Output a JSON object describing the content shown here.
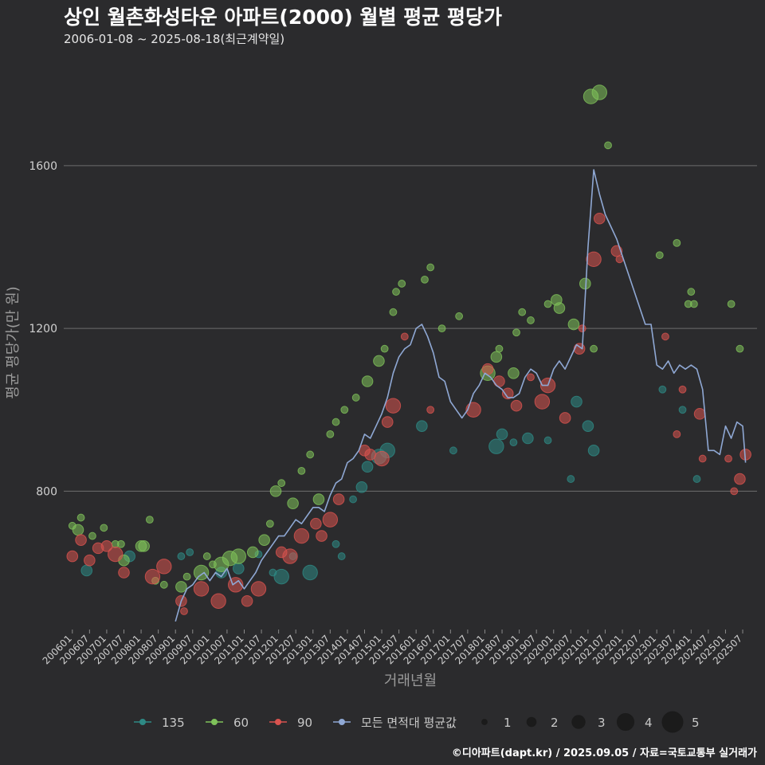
{
  "title": "상인 월촌화성타운 아파트(2000) 월별 평균 평당가",
  "subtitle": "2006-01-08 ~ 2025-08-18(최근계약일)",
  "caption": "©디아파트(dapt.kr) / 2025.09.05 / 자료=국토교통부 실거래가",
  "colors": {
    "135": "#2e8a85",
    "60": "#7fc25a",
    "90": "#d9534f",
    "avg": "#8fa8d4"
  },
  "chart_data": {
    "type": "scatter",
    "xlabel": "거래년월",
    "ylabel": "평균 평당가(만 원)",
    "x_ticks": [
      "200601",
      "200607",
      "200701",
      "200707",
      "200801",
      "200807",
      "200901",
      "200907",
      "201001",
      "201007",
      "201101",
      "201107",
      "201201",
      "201207",
      "201301",
      "201307",
      "201401",
      "201407",
      "201501",
      "201507",
      "201601",
      "201607",
      "201701",
      "201707",
      "201801",
      "201807",
      "201901",
      "201907",
      "202001",
      "202007",
      "202101",
      "202107",
      "202201",
      "202207",
      "202301",
      "202307",
      "202401",
      "202407",
      "202501",
      "202507"
    ],
    "y_ticks": [
      800,
      1200,
      1600
    ],
    "xlim": [
      "2005-10",
      "2025-12"
    ],
    "ylim": [
      460,
      1870
    ],
    "legend": {
      "placement": "bottom",
      "series": [
        {
          "key": "135",
          "label": "135"
        },
        {
          "key": "60",
          "label": "60"
        },
        {
          "key": "90",
          "label": "90"
        },
        {
          "key": "avg",
          "label": "모든 면적대 평균값"
        }
      ],
      "sizes": [
        1,
        2,
        3,
        4,
        5
      ]
    },
    "series": [
      {
        "name": "135",
        "points": [
          [
            "2006-06",
            605,
            2
          ],
          [
            "2007-09",
            640,
            2
          ],
          [
            "2009-03",
            640,
            1
          ],
          [
            "2009-06",
            650,
            1
          ],
          [
            "2010-05",
            600,
            2
          ],
          [
            "2010-11",
            610,
            2
          ],
          [
            "2011-06",
            645,
            1
          ],
          [
            "2011-11",
            600,
            1
          ],
          [
            "2012-02",
            590,
            3
          ],
          [
            "2012-06",
            640,
            1
          ],
          [
            "2012-12",
            600,
            3
          ],
          [
            "2013-09",
            670,
            1
          ],
          [
            "2013-11",
            640,
            1
          ],
          [
            "2014-03",
            780,
            1
          ],
          [
            "2014-06",
            810,
            2
          ],
          [
            "2014-08",
            860,
            2
          ],
          [
            "2014-12",
            885,
            3
          ],
          [
            "2015-03",
            900,
            3
          ],
          [
            "2016-03",
            960,
            2
          ],
          [
            "2017-02",
            900,
            1
          ],
          [
            "2018-05",
            910,
            3
          ],
          [
            "2018-07",
            940,
            2
          ],
          [
            "2018-11",
            920,
            1
          ],
          [
            "2019-04",
            930,
            2
          ],
          [
            "2019-11",
            925,
            1
          ],
          [
            "2020-07",
            830,
            1
          ],
          [
            "2020-09",
            1020,
            2
          ],
          [
            "2021-01",
            960,
            2
          ],
          [
            "2021-03",
            900,
            2
          ],
          [
            "2023-03",
            1050,
            1
          ],
          [
            "2023-10",
            1000,
            1
          ],
          [
            "2024-03",
            830,
            1
          ]
        ]
      },
      {
        "name": "60",
        "points": [
          [
            "2006-01",
            715,
            1
          ],
          [
            "2006-03",
            705,
            2
          ],
          [
            "2006-04",
            735,
            1
          ],
          [
            "2006-08",
            690,
            1
          ],
          [
            "2006-12",
            710,
            1
          ],
          [
            "2007-04",
            670,
            1
          ],
          [
            "2007-06",
            670,
            1
          ],
          [
            "2007-07",
            630,
            2
          ],
          [
            "2008-01",
            665,
            2
          ],
          [
            "2008-02",
            665,
            2
          ],
          [
            "2008-04",
            730,
            1
          ],
          [
            "2008-06",
            580,
            1
          ],
          [
            "2008-09",
            570,
            1
          ],
          [
            "2009-03",
            565,
            2
          ],
          [
            "2009-05",
            590,
            1
          ],
          [
            "2009-10",
            600,
            3
          ],
          [
            "2009-12",
            640,
            1
          ],
          [
            "2010-02",
            620,
            1
          ],
          [
            "2010-05",
            620,
            3
          ],
          [
            "2010-08",
            635,
            3
          ],
          [
            "2010-11",
            640,
            3
          ],
          [
            "2011-04",
            650,
            2
          ],
          [
            "2011-08",
            680,
            2
          ],
          [
            "2011-10",
            720,
            1
          ],
          [
            "2011-12",
            800,
            2
          ],
          [
            "2012-02",
            820,
            1
          ],
          [
            "2012-06",
            770,
            2
          ],
          [
            "2012-09",
            850,
            1
          ],
          [
            "2012-12",
            890,
            1
          ],
          [
            "2013-03",
            780,
            2
          ],
          [
            "2013-07",
            940,
            1
          ],
          [
            "2013-09",
            970,
            1
          ],
          [
            "2013-12",
            1000,
            1
          ],
          [
            "2014-04",
            1030,
            1
          ],
          [
            "2014-08",
            1070,
            2
          ],
          [
            "2014-12",
            1120,
            2
          ],
          [
            "2015-02",
            1150,
            1
          ],
          [
            "2015-05",
            1240,
            1
          ],
          [
            "2015-06",
            1290,
            1
          ],
          [
            "2015-08",
            1310,
            1
          ],
          [
            "2016-04",
            1320,
            1
          ],
          [
            "2016-06",
            1350,
            1
          ],
          [
            "2016-10",
            1200,
            1
          ],
          [
            "2017-04",
            1230,
            1
          ],
          [
            "2018-02",
            1090,
            3
          ],
          [
            "2018-05",
            1130,
            2
          ],
          [
            "2018-06",
            1150,
            1
          ],
          [
            "2018-11",
            1090,
            2
          ],
          [
            "2018-12",
            1190,
            1
          ],
          [
            "2019-02",
            1240,
            1
          ],
          [
            "2019-05",
            1220,
            1
          ],
          [
            "2019-11",
            1260,
            1
          ],
          [
            "2020-02",
            1270,
            2
          ],
          [
            "2020-03",
            1250,
            2
          ],
          [
            "2020-08",
            1210,
            2
          ],
          [
            "2020-12",
            1310,
            2
          ],
          [
            "2021-03",
            1150,
            1
          ],
          [
            "2021-02",
            1770,
            3
          ],
          [
            "2021-05",
            1780,
            3
          ],
          [
            "2021-08",
            1650,
            1
          ],
          [
            "2023-02",
            1380,
            1
          ],
          [
            "2023-08",
            1410,
            1
          ],
          [
            "2023-12",
            1260,
            1
          ],
          [
            "2024-01",
            1290,
            1
          ],
          [
            "2024-02",
            1260,
            1
          ],
          [
            "2025-03",
            1260,
            1
          ],
          [
            "2025-06",
            1150,
            1
          ]
        ]
      },
      {
        "name": "90",
        "points": [
          [
            "2006-01",
            640,
            2
          ],
          [
            "2006-04",
            680,
            2
          ],
          [
            "2006-07",
            630,
            2
          ],
          [
            "2006-10",
            660,
            2
          ],
          [
            "2007-01",
            665,
            2
          ],
          [
            "2007-04",
            645,
            3
          ],
          [
            "2007-07",
            600,
            2
          ],
          [
            "2008-05",
            590,
            3
          ],
          [
            "2008-09",
            615,
            3
          ],
          [
            "2009-03",
            530,
            2
          ],
          [
            "2009-04",
            505,
            1
          ],
          [
            "2009-10",
            560,
            3
          ],
          [
            "2010-04",
            530,
            3
          ],
          [
            "2010-10",
            570,
            3
          ],
          [
            "2011-02",
            530,
            2
          ],
          [
            "2011-06",
            560,
            3
          ],
          [
            "2012-02",
            650,
            2
          ],
          [
            "2012-05",
            640,
            3
          ],
          [
            "2012-09",
            690,
            3
          ],
          [
            "2013-02",
            720,
            2
          ],
          [
            "2013-04",
            690,
            2
          ],
          [
            "2013-07",
            730,
            3
          ],
          [
            "2013-10",
            780,
            2
          ],
          [
            "2014-07",
            900,
            2
          ],
          [
            "2014-09",
            890,
            2
          ],
          [
            "2015-01",
            880,
            3
          ],
          [
            "2015-03",
            970,
            2
          ],
          [
            "2015-05",
            1010,
            3
          ],
          [
            "2015-09",
            1180,
            1
          ],
          [
            "2016-06",
            1000,
            1
          ],
          [
            "2017-09",
            1000,
            3
          ],
          [
            "2018-02",
            1100,
            2
          ],
          [
            "2018-06",
            1070,
            2
          ],
          [
            "2018-09",
            1040,
            2
          ],
          [
            "2018-12",
            1010,
            2
          ],
          [
            "2019-05",
            1080,
            1
          ],
          [
            "2019-09",
            1020,
            3
          ],
          [
            "2019-11",
            1060,
            3
          ],
          [
            "2020-05",
            980,
            2
          ],
          [
            "2020-10",
            1150,
            2
          ],
          [
            "2020-11",
            1200,
            1
          ],
          [
            "2021-03",
            1370,
            3
          ],
          [
            "2021-05",
            1470,
            2
          ],
          [
            "2021-11",
            1390,
            2
          ],
          [
            "2021-12",
            1370,
            1
          ],
          [
            "2023-04",
            1180,
            1
          ],
          [
            "2023-08",
            940,
            1
          ],
          [
            "2023-10",
            1050,
            1
          ],
          [
            "2024-04",
            990,
            2
          ],
          [
            "2024-05",
            880,
            1
          ],
          [
            "2025-02",
            880,
            1
          ],
          [
            "2025-04",
            800,
            1
          ],
          [
            "2025-06",
            830,
            2
          ],
          [
            "2025-08",
            890,
            2
          ]
        ]
      }
    ],
    "avg_line": [
      [
        "2009-01",
        480
      ],
      [
        "2009-03",
        530
      ],
      [
        "2009-05",
        560
      ],
      [
        "2009-07",
        570
      ],
      [
        "2009-09",
        590
      ],
      [
        "2009-11",
        600
      ],
      [
        "2010-01",
        580
      ],
      [
        "2010-03",
        600
      ],
      [
        "2010-05",
        590
      ],
      [
        "2010-07",
        610
      ],
      [
        "2010-09",
        570
      ],
      [
        "2010-11",
        580
      ],
      [
        "2011-01",
        560
      ],
      [
        "2011-03",
        580
      ],
      [
        "2011-05",
        600
      ],
      [
        "2011-07",
        630
      ],
      [
        "2011-09",
        650
      ],
      [
        "2011-11",
        670
      ],
      [
        "2012-01",
        690
      ],
      [
        "2012-03",
        690
      ],
      [
        "2012-05",
        710
      ],
      [
        "2012-07",
        730
      ],
      [
        "2012-09",
        720
      ],
      [
        "2012-11",
        740
      ],
      [
        "2013-01",
        760
      ],
      [
        "2013-03",
        760
      ],
      [
        "2013-05",
        750
      ],
      [
        "2013-07",
        790
      ],
      [
        "2013-09",
        820
      ],
      [
        "2013-11",
        830
      ],
      [
        "2014-01",
        870
      ],
      [
        "2014-03",
        880
      ],
      [
        "2014-05",
        900
      ],
      [
        "2014-07",
        940
      ],
      [
        "2014-09",
        930
      ],
      [
        "2014-11",
        960
      ],
      [
        "2015-01",
        990
      ],
      [
        "2015-03",
        1030
      ],
      [
        "2015-05",
        1090
      ],
      [
        "2015-07",
        1130
      ],
      [
        "2015-09",
        1150
      ],
      [
        "2015-11",
        1160
      ],
      [
        "2016-01",
        1200
      ],
      [
        "2016-03",
        1210
      ],
      [
        "2016-05",
        1180
      ],
      [
        "2016-07",
        1140
      ],
      [
        "2016-09",
        1080
      ],
      [
        "2016-11",
        1070
      ],
      [
        "2017-01",
        1020
      ],
      [
        "2017-03",
        1000
      ],
      [
        "2017-05",
        980
      ],
      [
        "2017-07",
        1000
      ],
      [
        "2017-09",
        1040
      ],
      [
        "2017-11",
        1060
      ],
      [
        "2018-01",
        1090
      ],
      [
        "2018-03",
        1080
      ],
      [
        "2018-05",
        1060
      ],
      [
        "2018-07",
        1050
      ],
      [
        "2018-09",
        1030
      ],
      [
        "2018-11",
        1030
      ],
      [
        "2019-01",
        1040
      ],
      [
        "2019-03",
        1080
      ],
      [
        "2019-05",
        1100
      ],
      [
        "2019-07",
        1090
      ],
      [
        "2019-09",
        1060
      ],
      [
        "2019-11",
        1060
      ],
      [
        "2020-01",
        1100
      ],
      [
        "2020-03",
        1120
      ],
      [
        "2020-05",
        1100
      ],
      [
        "2020-07",
        1130
      ],
      [
        "2020-09",
        1160
      ],
      [
        "2020-11",
        1150
      ],
      [
        "2021-01",
        1400
      ],
      [
        "2021-03",
        1590
      ],
      [
        "2021-05",
        1530
      ],
      [
        "2021-07",
        1480
      ],
      [
        "2021-09",
        1450
      ],
      [
        "2021-11",
        1420
      ],
      [
        "2022-09",
        1210
      ],
      [
        "2022-11",
        1210
      ],
      [
        "2023-01",
        1110
      ],
      [
        "2023-03",
        1100
      ],
      [
        "2023-05",
        1120
      ],
      [
        "2023-07",
        1090
      ],
      [
        "2023-09",
        1110
      ],
      [
        "2023-11",
        1100
      ],
      [
        "2024-01",
        1110
      ],
      [
        "2024-03",
        1100
      ],
      [
        "2024-05",
        1050
      ],
      [
        "2024-07",
        900
      ],
      [
        "2024-09",
        900
      ],
      [
        "2024-11",
        890
      ],
      [
        "2025-01",
        960
      ],
      [
        "2025-03",
        930
      ],
      [
        "2025-05",
        970
      ],
      [
        "2025-07",
        960
      ],
      [
        "2025-08",
        870
      ]
    ]
  }
}
